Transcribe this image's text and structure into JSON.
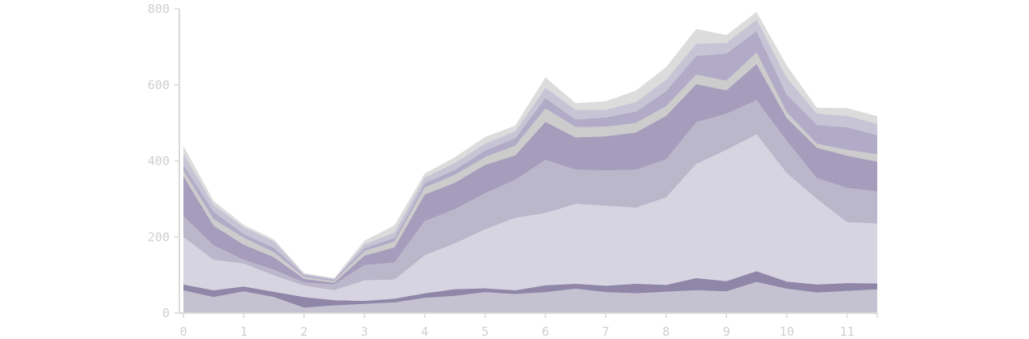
{
  "chart_data": {
    "type": "area",
    "stacked": true,
    "title": "",
    "xlabel": "",
    "ylabel": "",
    "xlim": [
      0,
      11.5
    ],
    "ylim": [
      0,
      800
    ],
    "grid": false,
    "legend": "none",
    "x_ticks": [
      "0",
      "1",
      "2",
      "3",
      "4",
      "5",
      "6",
      "7",
      "8",
      "9",
      "10",
      "11"
    ],
    "y_ticks": [
      "0",
      "200",
      "400",
      "600",
      "800"
    ],
    "x": [
      0,
      0.5,
      1,
      1.5,
      2,
      2.5,
      3,
      3.5,
      4,
      4.5,
      5,
      5.5,
      6,
      6.5,
      7,
      7.5,
      8,
      8.5,
      9,
      9.5,
      10,
      10.5,
      11,
      11.5
    ],
    "series": [
      {
        "color": "#c4c2d1",
        "values": [
          60,
          42,
          57,
          42,
          14,
          20,
          24,
          28,
          40,
          45,
          55,
          50,
          55,
          64,
          55,
          52,
          56,
          60,
          57,
          82,
          64,
          54,
          58,
          62
        ]
      },
      {
        "color": "#8f86a8",
        "values": [
          15,
          18,
          13,
          14,
          28,
          14,
          8,
          10,
          12,
          18,
          10,
          10,
          18,
          13,
          17,
          25,
          18,
          32,
          27,
          28,
          19,
          21,
          21,
          16
        ]
      },
      {
        "color": "#d6d4e1",
        "values": [
          125,
          80,
          60,
          43,
          30,
          26,
          54,
          50,
          100,
          120,
          155,
          190,
          190,
          210,
          210,
          200,
          230,
          300,
          345,
          360,
          285,
          225,
          160,
          157
        ]
      },
      {
        "color": "#bbb7cb",
        "values": [
          55,
          38,
          10,
          15,
          8,
          15,
          40,
          45,
          90,
          90,
          95,
          100,
          140,
          90,
          93,
          100,
          100,
          110,
          95,
          90,
          85,
          55,
          90,
          85
        ]
      },
      {
        "color": "#a69cbb",
        "values": [
          105,
          52,
          40,
          33,
          10,
          5,
          25,
          40,
          70,
          70,
          75,
          65,
          100,
          85,
          90,
          98,
          115,
          100,
          62,
          95,
          60,
          80,
          85,
          78
        ]
      },
      {
        "color": "#cccccc",
        "values": [
          15,
          17,
          18,
          13,
          5,
          4,
          12,
          15,
          18,
          20,
          20,
          25,
          35,
          27,
          25,
          25,
          25,
          25,
          25,
          30,
          15,
          10,
          15,
          20
        ]
      },
      {
        "color": "#b2abc7",
        "values": [
          15,
          20,
          10,
          12,
          5,
          4,
          8,
          10,
          12,
          14,
          18,
          20,
          28,
          20,
          25,
          30,
          40,
          50,
          72,
          57,
          46,
          50,
          60,
          50
        ]
      },
      {
        "color": "#c7c5d5",
        "values": [
          30,
          18,
          18,
          17,
          3,
          2,
          10,
          15,
          15,
          18,
          18,
          18,
          27,
          26,
          20,
          25,
          30,
          32,
          28,
          30,
          45,
          30,
          30,
          30
        ]
      },
      {
        "color": "#dcdcdc",
        "values": [
          20,
          10,
          6,
          5,
          2,
          2,
          9,
          18,
          10,
          15,
          17,
          15,
          27,
          17,
          22,
          30,
          33,
          38,
          20,
          20,
          32,
          15,
          20,
          20
        ]
      }
    ]
  }
}
